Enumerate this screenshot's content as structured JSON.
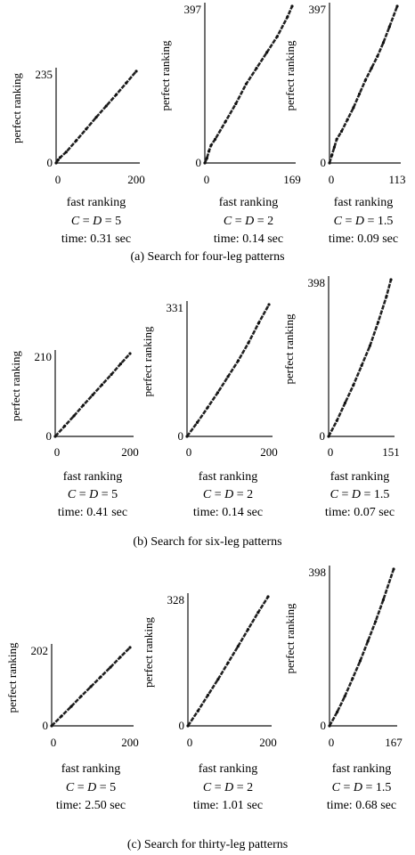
{
  "groups": [
    {
      "caption": "(a) Search for four-leg patterns"
    },
    {
      "caption": "(b) Search for six-leg patterns"
    },
    {
      "caption": "(c) Search for thirty-leg patterns"
    }
  ],
  "chart_data": [
    {
      "type": "scatter",
      "group": "a",
      "ylabel": "perfect ranking",
      "xlabel": "fast ranking",
      "c_label": "C",
      "d_label": "D",
      "cd_value": "= 5",
      "time": "time: 0.31 sec",
      "xlim": [
        0,
        200
      ],
      "ylim": [
        0,
        235
      ],
      "xticks": [
        "0",
        "200"
      ],
      "yticks": [
        "0",
        "235"
      ],
      "x": [
        0,
        5,
        10,
        25,
        50,
        75,
        100,
        125,
        150,
        175,
        200
      ],
      "y": [
        0,
        8,
        14,
        28,
        57,
        87,
        117,
        146,
        175,
        205,
        235
      ]
    },
    {
      "type": "scatter",
      "group": "a",
      "ylabel": "perfect ranking",
      "xlabel": "fast ranking",
      "c_label": "C",
      "d_label": "D",
      "cd_value": "= 2",
      "time": "time: 0.14 sec",
      "xlim": [
        0,
        169
      ],
      "ylim": [
        0,
        397
      ],
      "xticks": [
        "0",
        "169"
      ],
      "yticks": [
        "0",
        "397"
      ],
      "x": [
        0,
        4,
        8,
        12,
        20,
        40,
        60,
        80,
        100,
        120,
        140,
        160,
        169
      ],
      "y": [
        0,
        12,
        30,
        45,
        60,
        105,
        150,
        200,
        240,
        280,
        320,
        370,
        397
      ]
    },
    {
      "type": "scatter",
      "group": "a",
      "ylabel": "perfect ranking",
      "xlabel": "fast ranking",
      "c_label": "C",
      "d_label": "D",
      "cd_value": "= 1.5",
      "time": "time: 0.09 sec",
      "xlim": [
        0,
        113
      ],
      "ylim": [
        0,
        397
      ],
      "xticks": [
        "0",
        "113"
      ],
      "yticks": [
        "0",
        "397"
      ],
      "x": [
        0,
        4,
        8,
        12,
        20,
        30,
        40,
        50,
        60,
        70,
        80,
        90,
        100,
        113
      ],
      "y": [
        0,
        20,
        40,
        60,
        80,
        110,
        140,
        175,
        210,
        240,
        270,
        305,
        345,
        397
      ]
    },
    {
      "type": "scatter",
      "group": "b",
      "ylabel": "perfect ranking",
      "xlabel": "fast ranking",
      "c_label": "C",
      "d_label": "D",
      "cd_value": "= 5",
      "time": "time: 0.41 sec",
      "xlim": [
        0,
        200
      ],
      "ylim": [
        0,
        210
      ],
      "xticks": [
        "0",
        "200"
      ],
      "yticks": [
        "0",
        "210"
      ],
      "x": [
        0,
        25,
        50,
        75,
        100,
        125,
        150,
        175,
        200
      ],
      "y": [
        0,
        26,
        52,
        79,
        105,
        131,
        157,
        184,
        210
      ]
    },
    {
      "type": "scatter",
      "group": "b",
      "ylabel": "perfect ranking",
      "xlabel": "fast ranking",
      "c_label": "C",
      "d_label": "D",
      "cd_value": "= 2",
      "time": "time: 0.14 sec",
      "xlim": [
        0,
        200
      ],
      "ylim": [
        0,
        331
      ],
      "xticks": [
        "0",
        "200"
      ],
      "yticks": [
        "0",
        "331"
      ],
      "x": [
        0,
        25,
        50,
        75,
        100,
        125,
        150,
        175,
        200
      ],
      "y": [
        0,
        35,
        72,
        110,
        150,
        190,
        235,
        285,
        331
      ]
    },
    {
      "type": "scatter",
      "group": "b",
      "ylabel": "perfect ranking",
      "xlabel": "fast ranking",
      "c_label": "C",
      "d_label": "D",
      "cd_value": "= 1.5",
      "time": "time: 0.07 sec",
      "xlim": [
        0,
        151
      ],
      "ylim": [
        0,
        398
      ],
      "xticks": [
        "0",
        "151"
      ],
      "yticks": [
        "0",
        "398"
      ],
      "x": [
        0,
        20,
        40,
        60,
        80,
        100,
        120,
        140,
        151
      ],
      "y": [
        0,
        40,
        85,
        130,
        180,
        230,
        290,
        355,
        398
      ]
    },
    {
      "type": "scatter",
      "group": "c",
      "ylabel": "perfect ranking",
      "xlabel": "fast ranking",
      "c_label": "C",
      "d_label": "D",
      "cd_value": "= 5",
      "time": "time: 2.50 sec",
      "xlim": [
        0,
        200
      ],
      "ylim": [
        0,
        202
      ],
      "xticks": [
        "0",
        "200"
      ],
      "yticks": [
        "0",
        "202"
      ],
      "x": [
        0,
        25,
        50,
        75,
        100,
        125,
        150,
        175,
        200
      ],
      "y": [
        0,
        25,
        50,
        76,
        101,
        126,
        151,
        177,
        202
      ]
    },
    {
      "type": "scatter",
      "group": "c",
      "ylabel": "perfect ranking",
      "xlabel": "fast ranking",
      "c_label": "C",
      "d_label": "D",
      "cd_value": "= 2",
      "time": "time: 1.01 sec",
      "xlim": [
        0,
        200
      ],
      "ylim": [
        0,
        328
      ],
      "xticks": [
        "0",
        "200"
      ],
      "yticks": [
        "0",
        "328"
      ],
      "x": [
        0,
        25,
        50,
        75,
        100,
        125,
        150,
        175,
        200
      ],
      "y": [
        0,
        38,
        78,
        118,
        160,
        202,
        245,
        288,
        328
      ]
    },
    {
      "type": "scatter",
      "group": "c",
      "ylabel": "perfect ranking",
      "xlabel": "fast ranking",
      "c_label": "C",
      "d_label": "D",
      "cd_value": "= 1.5",
      "time": "time: 0.68 sec",
      "xlim": [
        0,
        167
      ],
      "ylim": [
        0,
        398
      ],
      "xticks": [
        "0",
        "167"
      ],
      "yticks": [
        "0",
        "398"
      ],
      "x": [
        0,
        20,
        40,
        60,
        80,
        100,
        120,
        140,
        167
      ],
      "y": [
        0,
        35,
        75,
        120,
        165,
        215,
        265,
        320,
        398
      ]
    }
  ]
}
